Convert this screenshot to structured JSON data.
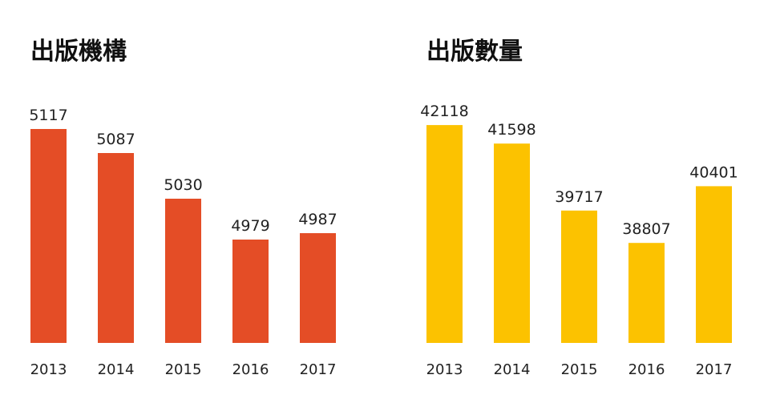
{
  "chart_data": [
    {
      "type": "bar",
      "title": "出版機構",
      "categories": [
        "2013",
        "2014",
        "2015",
        "2016",
        "2017"
      ],
      "values": [
        5117,
        5087,
        5030,
        4979,
        4987
      ],
      "ylim": [
        4850,
        5130
      ],
      "color": "#e44d26",
      "grid": false,
      "legend": "none",
      "xlabel": "",
      "ylabel": ""
    },
    {
      "type": "bar",
      "title": "出版數量",
      "categories": [
        "2013",
        "2014",
        "2015",
        "2016",
        "2017"
      ],
      "values": [
        42118,
        41598,
        39717,
        38807,
        40401
      ],
      "ylim": [
        36000,
        42300
      ],
      "color": "#fcc200",
      "grid": false,
      "legend": "none",
      "xlabel": "",
      "ylabel": ""
    }
  ]
}
